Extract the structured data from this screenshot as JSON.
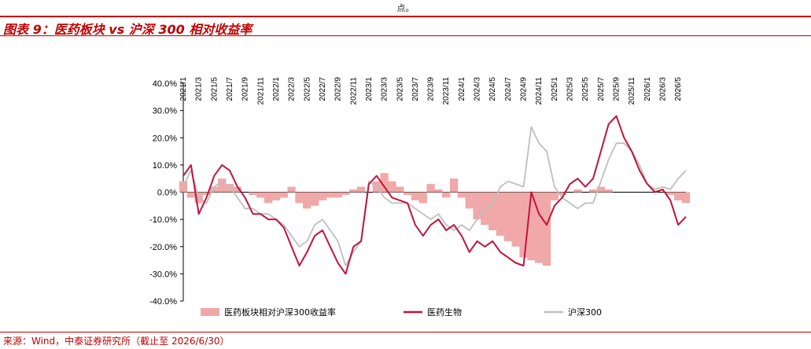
{
  "header": {
    "note": "点。"
  },
  "figure": {
    "title": "图表 9：医药板块 vs 沪深 300 相对收益率"
  },
  "source": "来源：Wind，中泰证券研究所（截止至 2026/6/30）",
  "colors": {
    "accent": "#c00000",
    "medicine": "#c0143c",
    "hs300": "#bfbfbf",
    "relative": "#f0a8a8"
  },
  "chart_data": {
    "type": "line",
    "title": "",
    "xlabel": "",
    "ylabel": "",
    "ylim": [
      -40,
      40
    ],
    "yticks": [
      40,
      30,
      20,
      10,
      0,
      -10,
      -20,
      -30,
      -40
    ],
    "ytick_labels": [
      "40.0%",
      "30.0%",
      "20.0%",
      "10.0%",
      "0.0%",
      "-10.0%",
      "-20.0%",
      "-30.0%",
      "-40.0%"
    ],
    "x_range": [
      "2021-01",
      "2026-06"
    ],
    "xtick_labels": [
      "2021/1",
      "2021/3",
      "2021/5",
      "2021/7",
      "2021/9",
      "2021/11",
      "2022/1",
      "2022/3",
      "2022/5",
      "2022/7",
      "2022/9",
      "2022/11",
      "2023/1",
      "2023/3",
      "2023/5",
      "2023/7",
      "2023/9",
      "2023/11",
      "2024/1",
      "2024/3",
      "2024/5",
      "2024/7",
      "2024/9",
      "2024/11",
      "2025/1",
      "2025/3",
      "2025/5",
      "2025/7",
      "2025/9",
      "2025/11",
      "2026/1",
      "2026/3",
      "2026/5"
    ],
    "legend_position": "bottom",
    "series": [
      {
        "name": "医药板块相对沪深300收益率",
        "type": "area",
        "x": [
          "2021-01",
          "2021-02",
          "2021-03",
          "2021-04",
          "2021-05",
          "2021-06",
          "2021-07",
          "2021-08",
          "2021-09",
          "2021-10",
          "2021-11",
          "2021-12",
          "2022-01",
          "2022-02",
          "2022-03",
          "2022-04",
          "2022-05",
          "2022-06",
          "2022-07",
          "2022-08",
          "2022-09",
          "2022-10",
          "2022-11",
          "2022-12",
          "2023-01",
          "2023-02",
          "2023-03",
          "2023-04",
          "2023-05",
          "2023-06",
          "2023-07",
          "2023-08",
          "2023-09",
          "2023-10",
          "2023-11",
          "2023-12",
          "2024-01",
          "2024-02",
          "2024-03",
          "2024-04",
          "2024-05",
          "2024-06",
          "2024-07",
          "2024-08",
          "2024-09",
          "2024-10",
          "2024-11",
          "2024-12",
          "2025-01",
          "2025-02",
          "2025-03",
          "2025-04",
          "2025-05",
          "2025-06",
          "2025-07",
          "2025-08",
          "2025-09",
          "2025-10",
          "2025-11",
          "2025-12",
          "2026-01",
          "2026-02",
          "2026-03",
          "2026-04",
          "2026-05",
          "2026-06"
        ],
        "values": [
          4,
          -2,
          -4,
          -1,
          2,
          5,
          3,
          2,
          0,
          -1,
          -2,
          -4,
          -3,
          -2,
          2,
          -4,
          -6,
          -5,
          -3,
          -2,
          -2,
          -1,
          1,
          2,
          0,
          4,
          7,
          4,
          2,
          -1,
          -3,
          -4,
          3,
          1,
          -2,
          5,
          -2,
          -6,
          -10,
          -12,
          -14,
          -16,
          -18,
          -20,
          -24,
          -25,
          -26,
          -27,
          -3,
          -1,
          0,
          1,
          0,
          1,
          2,
          1,
          0,
          0,
          0,
          0,
          0,
          0,
          0,
          -1,
          -3,
          -4
        ]
      },
      {
        "name": "医药生物",
        "type": "line",
        "x": [
          "2021-01",
          "2021-02",
          "2021-03",
          "2021-04",
          "2021-05",
          "2021-06",
          "2021-07",
          "2021-08",
          "2021-09",
          "2021-10",
          "2021-11",
          "2021-12",
          "2022-01",
          "2022-02",
          "2022-03",
          "2022-04",
          "2022-05",
          "2022-06",
          "2022-07",
          "2022-08",
          "2022-09",
          "2022-10",
          "2022-11",
          "2022-12",
          "2023-01",
          "2023-02",
          "2023-03",
          "2023-04",
          "2023-05",
          "2023-06",
          "2023-07",
          "2023-08",
          "2023-09",
          "2023-10",
          "2023-11",
          "2023-12",
          "2024-01",
          "2024-02",
          "2024-03",
          "2024-04",
          "2024-05",
          "2024-06",
          "2024-07",
          "2024-08",
          "2024-09",
          "2024-10",
          "2024-11",
          "2024-12",
          "2025-01",
          "2025-02",
          "2025-03",
          "2025-04",
          "2025-05",
          "2025-06",
          "2025-07",
          "2025-08",
          "2025-09",
          "2025-10",
          "2025-11",
          "2025-12",
          "2026-01",
          "2026-02",
          "2026-03",
          "2026-04",
          "2026-05",
          "2026-06"
        ],
        "values": [
          6,
          10,
          -8,
          -2,
          6,
          10,
          8,
          2,
          -2,
          -8,
          -8,
          -10,
          -10,
          -13,
          -20,
          -27,
          -22,
          -16,
          -14,
          -20,
          -26,
          -30,
          -20,
          -18,
          3,
          6,
          2,
          -2,
          -3,
          -4,
          -12,
          -16,
          -12,
          -10,
          -14,
          -12,
          -16,
          -22,
          -18,
          -20,
          -18,
          -22,
          -24,
          -26,
          -27,
          0,
          -8,
          -12,
          -5,
          -2,
          3,
          5,
          2,
          5,
          15,
          25,
          28,
          20,
          15,
          8,
          3,
          0,
          1,
          -3,
          -12,
          -9
        ]
      },
      {
        "name": "沪深300",
        "type": "line",
        "x": [
          "2021-01",
          "2021-02",
          "2021-03",
          "2021-04",
          "2021-05",
          "2021-06",
          "2021-07",
          "2021-08",
          "2021-09",
          "2021-10",
          "2021-11",
          "2021-12",
          "2022-01",
          "2022-02",
          "2022-03",
          "2022-04",
          "2022-05",
          "2022-06",
          "2022-07",
          "2022-08",
          "2022-09",
          "2022-10",
          "2022-11",
          "2022-12",
          "2023-01",
          "2023-02",
          "2023-03",
          "2023-04",
          "2023-05",
          "2023-06",
          "2023-07",
          "2023-08",
          "2023-09",
          "2023-10",
          "2023-11",
          "2023-12",
          "2024-01",
          "2024-02",
          "2024-03",
          "2024-04",
          "2024-05",
          "2024-06",
          "2024-07",
          "2024-08",
          "2024-09",
          "2024-10",
          "2024-11",
          "2024-12",
          "2025-01",
          "2025-02",
          "2025-03",
          "2025-04",
          "2025-05",
          "2025-06",
          "2025-07",
          "2025-08",
          "2025-09",
          "2025-10",
          "2025-11",
          "2025-12",
          "2026-01",
          "2026-02",
          "2026-03",
          "2026-04",
          "2026-05",
          "2026-06"
        ],
        "values": [
          2,
          8,
          -2,
          -4,
          2,
          4,
          2,
          -2,
          -6,
          -6,
          -8,
          -8,
          -10,
          -12,
          -16,
          -20,
          -18,
          -12,
          -10,
          -14,
          -18,
          -27,
          -22,
          -18,
          4,
          2,
          -2,
          -4,
          -4,
          -4,
          -6,
          -8,
          -10,
          -8,
          -12,
          -14,
          -12,
          -14,
          -10,
          -6,
          -4,
          2,
          4,
          3,
          2,
          24,
          18,
          15,
          2,
          -2,
          -4,
          -6,
          -4,
          -4,
          4,
          12,
          18,
          18,
          15,
          10,
          3,
          1,
          2,
          1,
          5,
          8
        ]
      }
    ]
  }
}
